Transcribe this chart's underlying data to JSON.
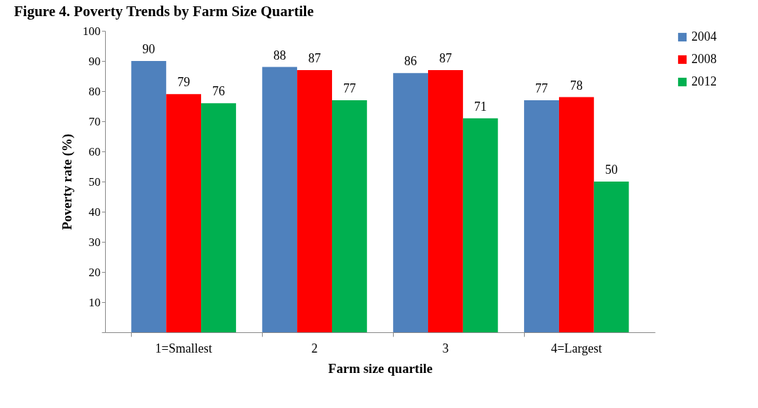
{
  "chart_data": {
    "type": "bar",
    "title": "Figure 4. Poverty Trends by Farm Size Quartile",
    "xlabel": "Farm size quartile",
    "ylabel": "Poverty rate (%)",
    "categories": [
      "1=Smallest",
      "2",
      "3",
      "4=Largest"
    ],
    "series": [
      {
        "name": "2004",
        "color": "#4f81bd",
        "values": [
          90,
          88,
          86,
          77
        ]
      },
      {
        "name": "2008",
        "color": "#ff0000",
        "values": [
          79,
          87,
          87,
          78
        ]
      },
      {
        "name": "2012",
        "color": "#00b050",
        "values": [
          76,
          77,
          71,
          50
        ]
      }
    ],
    "ylim": [
      0,
      100
    ],
    "yticks": [
      {
        "value": 0,
        "label": null
      },
      10,
      20,
      30,
      40,
      50,
      60,
      70,
      80,
      90,
      100
    ],
    "data_labels": true,
    "legend": "right",
    "grid": false
  }
}
